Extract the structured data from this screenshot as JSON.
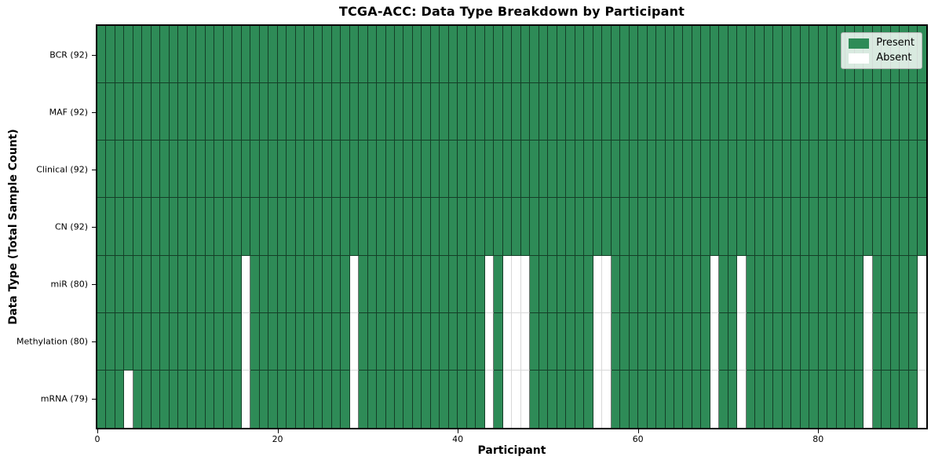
{
  "chart_data": {
    "type": "heatmap",
    "title": "TCGA-ACC: Data Type Breakdown by Participant",
    "xlabel": "Participant",
    "ylabel": "Data Type (Total Sample Count)",
    "n_participants": 92,
    "x_ticks": [
      0,
      20,
      40,
      60,
      80
    ],
    "x_range": [
      0,
      92
    ],
    "grid_lines": "cell-edges",
    "rows": [
      {
        "name": "BCR",
        "label": "BCR (92)",
        "present_count": 92,
        "absent_participants": []
      },
      {
        "name": "MAF",
        "label": "MAF (92)",
        "present_count": 92,
        "absent_participants": []
      },
      {
        "name": "Clinical",
        "label": "Clinical (92)",
        "present_count": 92,
        "absent_participants": []
      },
      {
        "name": "CN",
        "label": "CN (92)",
        "present_count": 92,
        "absent_participants": []
      },
      {
        "name": "miR",
        "label": "miR (80)",
        "present_count": 80,
        "absent_participants": [
          16,
          28,
          43,
          45,
          46,
          47,
          55,
          56,
          68,
          71,
          85,
          91
        ]
      },
      {
        "name": "Methylation",
        "label": "Methylation (80)",
        "present_count": 80,
        "absent_participants": [
          16,
          28,
          43,
          45,
          46,
          47,
          55,
          56,
          68,
          71,
          85,
          91
        ]
      },
      {
        "name": "mRNA",
        "label": "mRNA (79)",
        "present_count": 79,
        "absent_participants": [
          3,
          16,
          28,
          43,
          45,
          46,
          47,
          55,
          56,
          68,
          71,
          85,
          91
        ]
      }
    ],
    "legend": {
      "position": "upper right",
      "entries": [
        {
          "label": "Present",
          "color": "#2e8b57"
        },
        {
          "label": "Absent",
          "color": "#ffffff"
        }
      ]
    },
    "colors": {
      "present": "#2e8b57",
      "absent": "#ffffff",
      "cell_edge_dark": "rgba(0,0,0,0.55)",
      "cell_edge_light": "#d8d8d8",
      "spine": "#000000"
    }
  }
}
